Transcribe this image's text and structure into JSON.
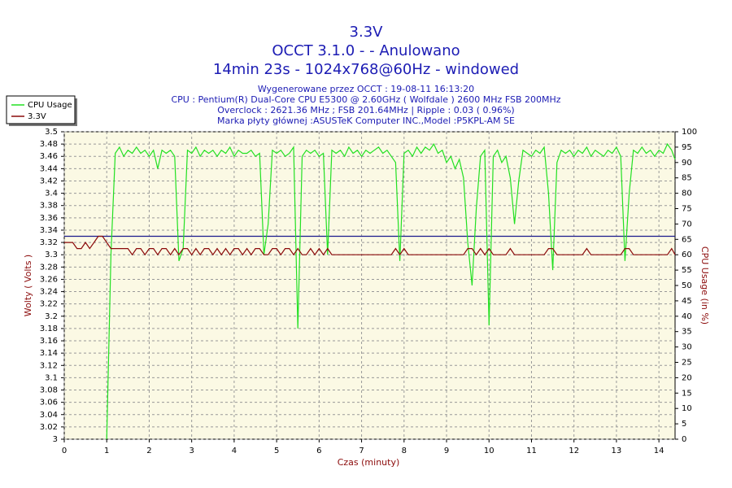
{
  "chart_data": {
    "type": "line",
    "title": [
      "3.3V",
      "OCCT 3.1.0 -  - Anulowano",
      "14min 23s - 1024x768@60Hz - windowed"
    ],
    "subtitle": [
      "Wygenerowane przez OCCT : 19-08-11 16:13:20",
      "CPU : Pentium(R) Dual-Core CPU E5300 @ 2.60GHz ( Wolfdale ) 2600 MHz FSB 200MHz",
      "Overclock : 2621.36 MHz ; FSB 201.64MHz | Ripple : 0.03 ( 0.96%)",
      "Marka płyty głównej :ASUSTeK Computer INC.,Model :P5KPL-AM SE"
    ],
    "x_label": "Czas (minuty)",
    "y_label": "Wolty ( Volts )",
    "y2_label": "CPU Usage (in %)",
    "x": [
      0,
      0.1,
      0.2,
      0.3,
      0.4,
      0.5,
      0.6,
      0.7,
      0.8,
      0.9,
      1,
      1.1,
      1.2,
      1.3,
      1.4,
      1.5,
      1.6,
      1.7,
      1.8,
      1.9,
      2,
      2.1,
      2.2,
      2.3,
      2.4,
      2.5,
      2.6,
      2.7,
      2.8,
      2.9,
      3,
      3.1,
      3.2,
      3.3,
      3.4,
      3.5,
      3.6,
      3.7,
      3.8,
      3.9,
      4,
      4.1,
      4.2,
      4.3,
      4.4,
      4.5,
      4.6,
      4.7,
      4.8,
      4.9,
      5,
      5.1,
      5.2,
      5.3,
      5.4,
      5.5,
      5.6,
      5.7,
      5.8,
      5.9,
      6,
      6.1,
      6.2,
      6.3,
      6.4,
      6.5,
      6.6,
      6.7,
      6.8,
      6.9,
      7,
      7.1,
      7.2,
      7.3,
      7.4,
      7.5,
      7.6,
      7.7,
      7.8,
      7.9,
      8,
      8.1,
      8.2,
      8.3,
      8.4,
      8.5,
      8.6,
      8.7,
      8.8,
      8.9,
      9,
      9.1,
      9.2,
      9.3,
      9.4,
      9.5,
      9.6,
      9.7,
      9.8,
      9.9,
      10,
      10.1,
      10.2,
      10.3,
      10.4,
      10.5,
      10.6,
      10.7,
      10.8,
      10.9,
      11,
      11.1,
      11.2,
      11.3,
      11.4,
      11.5,
      11.6,
      11.7,
      11.8,
      11.9,
      12,
      12.1,
      12.2,
      12.3,
      12.4,
      12.5,
      12.6,
      12.7,
      12.8,
      12.9,
      13,
      13.1,
      13.2,
      13.3,
      13.4,
      13.5,
      13.6,
      13.7,
      13.8,
      13.9,
      14,
      14.1,
      14.2,
      14.3,
      14.38
    ],
    "series": [
      {
        "name": "CPU Usage",
        "color": "#22e022",
        "axis": "y2",
        "values": [
          null,
          null,
          null,
          null,
          null,
          null,
          null,
          null,
          null,
          null,
          0,
          60,
          93,
          95,
          92,
          94,
          93,
          95,
          93,
          94,
          92,
          94,
          88,
          94,
          93,
          94,
          92,
          58,
          62,
          94,
          93,
          95,
          92,
          94,
          93,
          94,
          92,
          94,
          93,
          95,
          92,
          94,
          93,
          93,
          94,
          92,
          93,
          60,
          70,
          94,
          93,
          94,
          92,
          93,
          95,
          36,
          92,
          94,
          93,
          94,
          92,
          93,
          60,
          94,
          93,
          94,
          92,
          95,
          93,
          94,
          92,
          94,
          93,
          94,
          95,
          93,
          94,
          92,
          90,
          58,
          93,
          94,
          92,
          95,
          93,
          95,
          94,
          96,
          93,
          94,
          90,
          92,
          88,
          91,
          85,
          64,
          50,
          75,
          92,
          94,
          37,
          92,
          94,
          90,
          92,
          85,
          70,
          84,
          94,
          93,
          92,
          94,
          93,
          95,
          80,
          55,
          90,
          94,
          93,
          94,
          92,
          94,
          93,
          95,
          92,
          94,
          93,
          92,
          94,
          93,
          95,
          92,
          58,
          80,
          94,
          93,
          95,
          93,
          94,
          92,
          94,
          93,
          96,
          94,
          91
        ]
      },
      {
        "name": "3.3V",
        "color": "#8b0a0a",
        "values": [
          3.32,
          3.32,
          3.32,
          3.31,
          3.31,
          3.32,
          3.31,
          3.32,
          3.33,
          3.33,
          3.32,
          3.31,
          3.31,
          3.31,
          3.31,
          3.31,
          3.3,
          3.31,
          3.31,
          3.3,
          3.31,
          3.31,
          3.3,
          3.31,
          3.31,
          3.3,
          3.31,
          3.3,
          3.31,
          3.31,
          3.3,
          3.31,
          3.3,
          3.31,
          3.31,
          3.3,
          3.31,
          3.3,
          3.31,
          3.3,
          3.31,
          3.31,
          3.3,
          3.31,
          3.3,
          3.31,
          3.31,
          3.3,
          3.3,
          3.31,
          3.31,
          3.3,
          3.31,
          3.31,
          3.3,
          3.31,
          3.3,
          3.3,
          3.31,
          3.3,
          3.31,
          3.3,
          3.31,
          3.3,
          3.3,
          3.3,
          3.3,
          3.3,
          3.3,
          3.3,
          3.3,
          3.3,
          3.3,
          3.3,
          3.3,
          3.3,
          3.3,
          3.3,
          3.31,
          3.3,
          3.31,
          3.3,
          3.3,
          3.3,
          3.3,
          3.3,
          3.3,
          3.3,
          3.3,
          3.3,
          3.3,
          3.3,
          3.3,
          3.3,
          3.3,
          3.31,
          3.31,
          3.3,
          3.31,
          3.3,
          3.31,
          3.3,
          3.3,
          3.3,
          3.3,
          3.31,
          3.3,
          3.3,
          3.3,
          3.3,
          3.3,
          3.3,
          3.3,
          3.3,
          3.31,
          3.31,
          3.3,
          3.3,
          3.3,
          3.3,
          3.3,
          3.3,
          3.3,
          3.31,
          3.3,
          3.3,
          3.3,
          3.3,
          3.3,
          3.3,
          3.3,
          3.3,
          3.31,
          3.31,
          3.3,
          3.3,
          3.3,
          3.3,
          3.3,
          3.3,
          3.3,
          3.3,
          3.3,
          3.31,
          3.3
        ]
      }
    ],
    "reference_line": {
      "value": 3.33,
      "color": "#1a1a8c"
    },
    "xlim": [
      0,
      14.38
    ],
    "xticks": [
      0,
      1,
      2,
      3,
      4,
      5,
      6,
      7,
      8,
      9,
      10,
      11,
      12,
      13,
      14
    ],
    "ylim": [
      3,
      3.5
    ],
    "yticks": [
      3,
      3.02,
      3.04,
      3.06,
      3.08,
      3.1,
      3.12,
      3.14,
      3.16,
      3.18,
      3.2,
      3.22,
      3.24,
      3.26,
      3.28,
      3.3,
      3.32,
      3.34,
      3.36,
      3.38,
      3.4,
      3.42,
      3.44,
      3.46,
      3.48,
      3.5
    ],
    "y2lim": [
      0,
      100
    ],
    "y2ticks": [
      0,
      5,
      10,
      15,
      20,
      25,
      30,
      35,
      40,
      45,
      50,
      55,
      60,
      65,
      70,
      75,
      80,
      85,
      90,
      95,
      100
    ],
    "grid": true,
    "legend": "top-left"
  }
}
